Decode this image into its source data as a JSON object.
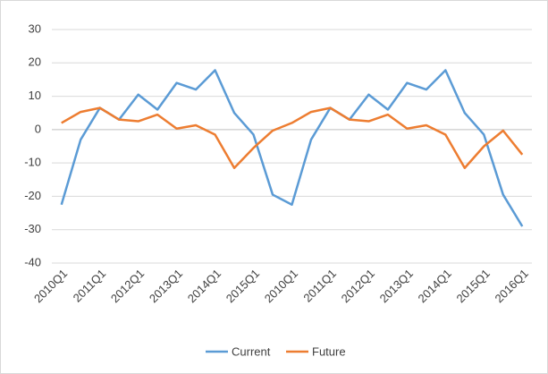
{
  "chart_data": {
    "type": "line",
    "categories": [
      "2010Q1",
      null,
      "2011Q1",
      null,
      "2012Q1",
      null,
      "2013Q1",
      null,
      "2014Q1",
      null,
      "2015Q1",
      null,
      "2010Q1",
      null,
      "2011Q1",
      null,
      "2012Q1",
      null,
      "2013Q1",
      null,
      "2014Q1",
      null,
      "2015Q1",
      null,
      "2016Q1"
    ],
    "series": [
      {
        "name": "Current",
        "color": "#5b9bd5",
        "values": [
          -22.5,
          -3,
          6.5,
          3,
          10.5,
          6,
          14,
          12,
          17.8,
          5,
          -1.5,
          -19.5,
          -22.5,
          -3,
          6.5,
          3,
          10.5,
          6,
          14,
          12,
          17.8,
          5,
          -1.5,
          -19.5,
          -29
        ]
      },
      {
        "name": "Future",
        "color": "#ed7d31",
        "values": [
          2,
          5.3,
          6.5,
          3,
          2.5,
          4.5,
          0.3,
          1.3,
          -1.5,
          -11.5,
          -5.5,
          -0.3,
          2,
          5.3,
          6.5,
          3,
          2.5,
          4.5,
          0.3,
          1.3,
          -1.5,
          -11.5,
          -5,
          -0.3,
          -7.5
        ]
      }
    ],
    "ylim": [
      -40,
      30
    ],
    "yticks": [
      -40,
      -30,
      -20,
      -10,
      0,
      10,
      20,
      30
    ],
    "grid": true,
    "legend": "bottom"
  }
}
